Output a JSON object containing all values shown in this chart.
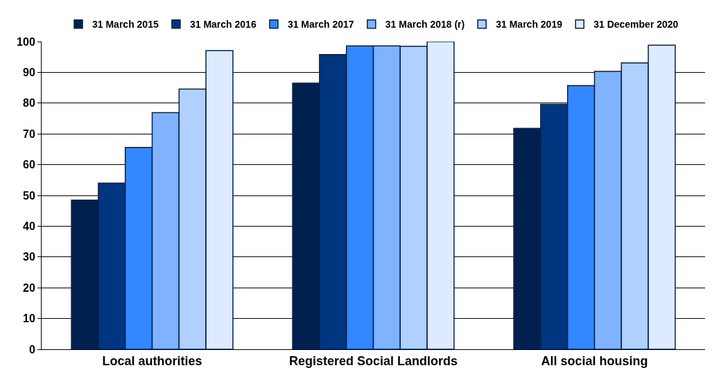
{
  "chart_data": {
    "type": "bar",
    "categories": [
      "Local authorities",
      "Registered Social Landlords",
      "All social housing"
    ],
    "series": [
      {
        "name": "31 March 2015",
        "color": "#002050",
        "values": [
          48.5,
          86.5,
          71.8
        ]
      },
      {
        "name": "31 March 2016",
        "color": "#003580",
        "values": [
          54,
          95.8,
          79.6
        ]
      },
      {
        "name": "31 March 2017",
        "color": "#3388ff",
        "values": [
          65.6,
          98.6,
          85.7
        ]
      },
      {
        "name": "31 March 2018 (r)",
        "color": "#7fb2ff",
        "values": [
          76.9,
          98.6,
          90.3
        ]
      },
      {
        "name": "31 March 2019",
        "color": "#b0d0ff",
        "values": [
          84.6,
          98.5,
          93.1
        ]
      },
      {
        "name": "31 December 2020",
        "color": "#deeaff",
        "values": [
          97.1,
          100,
          98.8
        ]
      }
    ],
    "ylim": [
      0,
      100
    ],
    "yticks": [
      0,
      10,
      20,
      30,
      40,
      50,
      60,
      70,
      80,
      90,
      100
    ],
    "grid": "y",
    "legend": "top"
  }
}
